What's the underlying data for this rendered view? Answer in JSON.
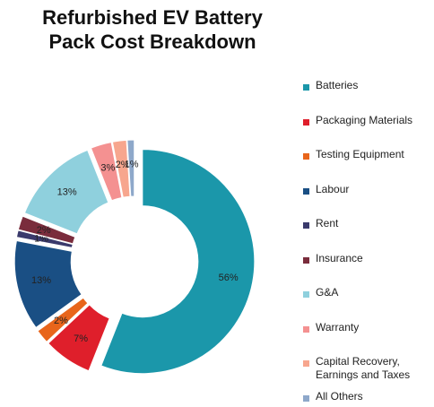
{
  "chart_data": {
    "type": "donut",
    "title": "Refurbished EV Battery Pack Cost Breakdown",
    "categories": [
      "Batteries",
      "Packaging Materials",
      "Testing Equipment",
      "Labour",
      "Rent",
      "Insurance",
      "G&A",
      "Warranty",
      "Capital Recovery, Earnings and Taxes",
      "All Others"
    ],
    "values": [
      56,
      7,
      2,
      13,
      1,
      2,
      13,
      3,
      2,
      1
    ],
    "value_labels": [
      "56%",
      "7%",
      "2%",
      "13%",
      "1%",
      "2%",
      "13%",
      "3%",
      "2%",
      "1%"
    ],
    "colors": [
      "#1b97aa",
      "#df1f2b",
      "#e8651b",
      "#1a4f84",
      "#3a3a6c",
      "#7a2c3c",
      "#8fd0dd",
      "#f49191",
      "#f7a68e",
      "#8ea8ca"
    ],
    "legend": "right"
  }
}
